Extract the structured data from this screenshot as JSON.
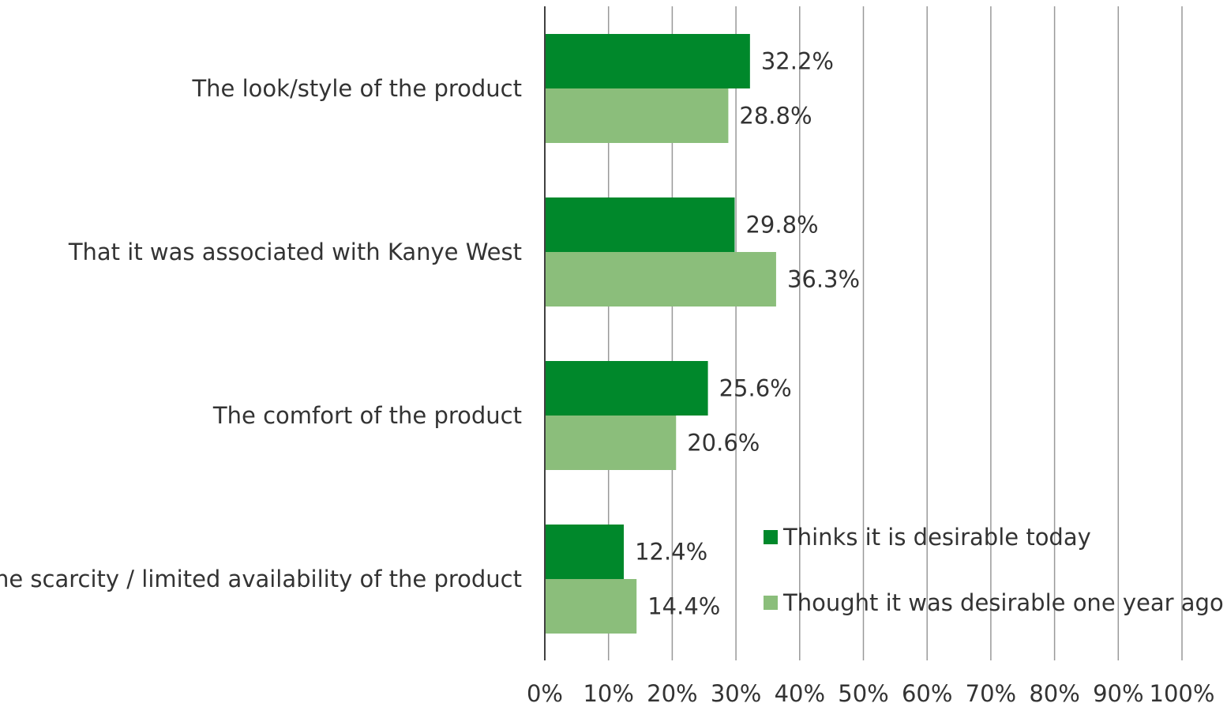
{
  "chart_data": {
    "type": "bar",
    "orientation": "horizontal",
    "categories": [
      "The look/style of the product",
      "That it was associated with Kanye West",
      "The comfort of the product",
      "The scarcity / limited availability of the product"
    ],
    "series": [
      {
        "name": "Thinks it is desirable today",
        "values": [
          32.2,
          29.8,
          25.6,
          12.4
        ],
        "labels": [
          "32.2%",
          "29.8%",
          "25.6%",
          "12.4%"
        ],
        "color": "#00882B"
      },
      {
        "name": "Thought it was desirable one year ago",
        "values": [
          28.8,
          36.3,
          20.6,
          14.4
        ],
        "labels": [
          "28.8%",
          "36.3%",
          "20.6%",
          "14.4%"
        ],
        "color": "#8BBE7B"
      }
    ],
    "x_ticks": [
      "0%",
      "10%",
      "20%",
      "30%",
      "40%",
      "50%",
      "60%",
      "70%",
      "80%",
      "90%",
      "100%"
    ],
    "xlim": [
      0,
      100
    ],
    "grid": true,
    "legend_position": "bottom-right",
    "title": "",
    "xlabel": "",
    "ylabel": ""
  }
}
